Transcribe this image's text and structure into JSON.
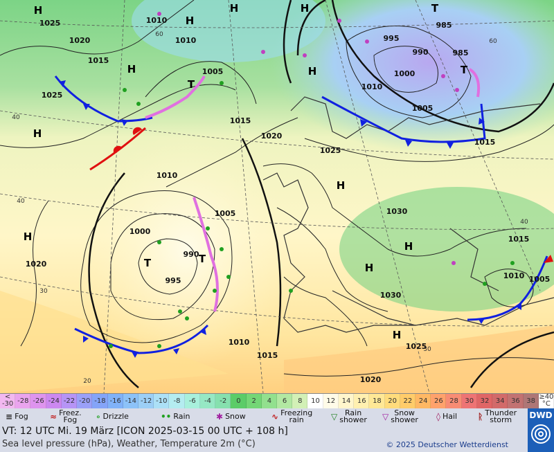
{
  "map": {
    "pressure_labels": [
      "1025",
      "1010",
      "1020",
      "1010",
      "1015",
      "1005",
      "1025",
      "1015",
      "1020",
      "1025",
      "1010",
      "1005",
      "1000",
      "990",
      "995",
      "1020",
      "1030",
      "1030",
      "1025",
      "1010",
      "1015",
      "1020",
      "995",
      "985",
      "990",
      "985",
      "1000",
      "1010",
      "1005",
      "1015",
      "1015",
      "1010",
      "1005"
    ],
    "centers": [
      "H",
      "H",
      "H",
      "H",
      "H",
      "H",
      "H",
      "H",
      "H",
      "H",
      "H",
      "H",
      "T",
      "T",
      "T",
      "T",
      "T"
    ],
    "grid_labels": [
      "60",
      "40",
      "40",
      "30",
      "20",
      "30",
      "40",
      "60"
    ]
  },
  "legend": {
    "scale": {
      "first": [
        "<",
        "-30"
      ],
      "values": [
        -30,
        -28,
        -26,
        -24,
        -22,
        -20,
        -18,
        -16,
        -14,
        -12,
        -10,
        -8,
        -6,
        -4,
        -2,
        0,
        2,
        4,
        6,
        8,
        10,
        12,
        14,
        16,
        18,
        20,
        22,
        24,
        26,
        28,
        30,
        32,
        34,
        36,
        38
      ],
      "last": [
        "≥40",
        "°C"
      ],
      "colors": [
        "#f2b8f0",
        "#eaa4ee",
        "#de94ee",
        "#cc88f0",
        "#b694f6",
        "#9aa0f8",
        "#84a4f8",
        "#80b2f8",
        "#8cc2f8",
        "#9ccff6",
        "#ace0f6",
        "#b4ecf0",
        "#a8f0dc",
        "#96e8c4",
        "#86e0ae",
        "#5ccc68",
        "#74d676",
        "#92e08e",
        "#b2e8a2",
        "#d2f0b6",
        "#ffffff",
        "#fffbe8",
        "#fff6cc",
        "#fff0b0",
        "#ffe896",
        "#ffdc7c",
        "#ffcc6a",
        "#ffb864",
        "#ffa26c",
        "#f88c74",
        "#ee7474",
        "#e06666",
        "#d26a6a",
        "#c27272",
        "#ae7676",
        "#c8a6a6"
      ]
    },
    "weather": [
      "Fog",
      "Freez.\nFog",
      "Drizzle",
      "Rain",
      "Snow",
      "Freezing\nrain",
      "Rain\nshower",
      "Snow\nshower",
      "Hail",
      "Thunder\nstorm"
    ]
  },
  "footer": {
    "valid_time": "VT: 12 UTC Mi.  19 März [ICON 2025-03-15  00 UTC + 108 h]",
    "description": "Sea level pressure (hPa), Weather, Temperature 2m (°C)",
    "copyright": "© 2025 Deutscher Wetterdienst",
    "logo": "DWD"
  }
}
